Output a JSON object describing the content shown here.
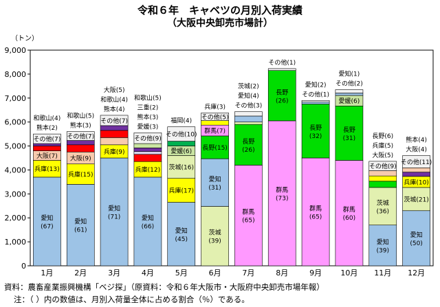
{
  "title": "令和６年　キャベツの月別入荷実績",
  "subtitle": "（大阪中央卸売市場計）",
  "source_note": "資料：農畜産業振興機構「ベジ探」（原資料：令和６年大阪市・大阪府中央卸売市場年報）",
  "share_note": "注：（ ）内の数値は、月別入荷量全体に占める割合（％）である。",
  "chart_data": {
    "type": "bar",
    "stacked": true,
    "unit_label": "（トン）",
    "ylim": [
      0,
      9000
    ],
    "yticks": [
      0,
      1000,
      2000,
      3000,
      4000,
      5000,
      6000,
      7000,
      8000,
      9000
    ],
    "ytick_labels": [
      "0",
      "1,000",
      "2,000",
      "3,000",
      "4,000",
      "5,000",
      "6,000",
      "7,000",
      "8,000",
      "9,000"
    ],
    "categories": [
      "1月",
      "2月",
      "3月",
      "4月",
      "5月",
      "6月",
      "7月",
      "8月",
      "9月",
      "10月",
      "11月",
      "12月"
    ],
    "colors": {
      "愛知": "#9dc3e6",
      "兵庫": "#ffff00",
      "大阪": "#f8cbad",
      "和歌山": "#ff0000",
      "熊本": "#7030a0",
      "三重": "#d9d2e9",
      "茨城": "#e2f0b0",
      "群馬": "#ff99ff",
      "長野": "#00dd00",
      "愛媛": "#c9e4a2",
      "福岡": "#00b050",
      "その他": "#f2f2f2"
    },
    "months": [
      {
        "segments": [
          {
            "name": "愛知",
            "value": 3700,
            "share": "(67)"
          },
          {
            "name": "兵庫",
            "value": 700,
            "share": "(13)"
          },
          {
            "name": "大阪",
            "value": 400,
            "share": "(7)"
          },
          {
            "name": "和歌山",
            "value": 200,
            "share": "(4)"
          },
          {
            "name": "熊本",
            "value": 100,
            "share": "(2)"
          },
          {
            "name": "その他",
            "value": 400,
            "share": "(7)"
          }
        ]
      },
      {
        "segments": [
          {
            "name": "愛知",
            "value": 3400,
            "share": "(61)"
          },
          {
            "name": "兵庫",
            "value": 850,
            "share": "(15)"
          },
          {
            "name": "大阪",
            "value": 500,
            "share": "(9)"
          },
          {
            "name": "和歌山",
            "value": 300,
            "share": "(5)"
          },
          {
            "name": "熊本",
            "value": 180,
            "share": "(3)"
          },
          {
            "name": "その他",
            "value": 370,
            "share": "(7)"
          }
        ]
      },
      {
        "segments": [
          {
            "name": "愛知",
            "value": 4500,
            "share": "(71)"
          },
          {
            "name": "兵庫",
            "value": 550,
            "share": "(9)"
          },
          {
            "name": "大阪",
            "value": 300,
            "share": "(5)"
          },
          {
            "name": "和歌山",
            "value": 300,
            "share": "(4)"
          },
          {
            "name": "熊本",
            "value": 200,
            "share": "(4)"
          },
          {
            "name": "その他",
            "value": 430,
            "share": "(7)"
          }
        ]
      },
      {
        "segments": [
          {
            "name": "愛知",
            "value": 3700,
            "share": "(66)"
          },
          {
            "name": "兵庫",
            "value": 650,
            "share": "(12)"
          },
          {
            "name": "和歌山",
            "value": 300,
            "share": "(5)"
          },
          {
            "name": "三重",
            "value": 120,
            "share": "(2)"
          },
          {
            "name": "熊本",
            "value": 150,
            "share": "(3)"
          },
          {
            "name": "愛媛",
            "value": 180,
            "share": "(3)"
          },
          {
            "name": "その他",
            "value": 450,
            "share": "(9)"
          }
        ]
      },
      {
        "segments": [
          {
            "name": "愛知",
            "value": 2650,
            "share": "(45)"
          },
          {
            "name": "兵庫",
            "value": 1000,
            "share": "(17)"
          },
          {
            "name": "茨城",
            "value": 950,
            "share": "(16)"
          },
          {
            "name": "愛媛",
            "value": 400,
            "share": "(6)"
          },
          {
            "name": "福岡",
            "value": 200,
            "share": "(4)"
          },
          {
            "name": "その他",
            "value": 600,
            "share": "(10)"
          }
        ]
      },
      {
        "segments": [
          {
            "name": "茨城",
            "value": 2480,
            "share": "(39)"
          },
          {
            "name": "愛知",
            "value": 1990,
            "share": "(31)"
          },
          {
            "name": "長野",
            "value": 950,
            "share": "(15)"
          },
          {
            "name": "群馬",
            "value": 450,
            "share": "(7)"
          },
          {
            "name": "兵庫",
            "value": 190,
            "share": "(3)"
          },
          {
            "name": "その他",
            "value": 320,
            "share": "(5)"
          }
        ]
      },
      {
        "segments": [
          {
            "name": "群馬",
            "value": 4200,
            "share": "(65)"
          },
          {
            "name": "長野",
            "value": 1700,
            "share": "(26)"
          },
          {
            "name": "茨城",
            "value": 100,
            "share": "(2)"
          },
          {
            "name": "愛知",
            "value": 250,
            "share": "(4)"
          },
          {
            "name": "その他",
            "value": 180,
            "share": "(3)"
          }
        ]
      },
      {
        "segments": [
          {
            "name": "群馬",
            "value": 6050,
            "share": "(73)"
          },
          {
            "name": "長野",
            "value": 2100,
            "share": "(26)"
          },
          {
            "name": "その他",
            "value": 80,
            "share": "(1)"
          }
        ]
      },
      {
        "segments": [
          {
            "name": "群馬",
            "value": 4500,
            "share": "(65)"
          },
          {
            "name": "長野",
            "value": 2250,
            "share": "(32)"
          },
          {
            "name": "愛知",
            "value": 80,
            "share": "(2)"
          },
          {
            "name": "その他",
            "value": 70,
            "share": "(1)"
          }
        ]
      },
      {
        "segments": [
          {
            "name": "群馬",
            "value": 4400,
            "share": "(60)"
          },
          {
            "name": "長野",
            "value": 2270,
            "share": "(31)"
          },
          {
            "name": "愛媛",
            "value": 440,
            "share": "(6)"
          },
          {
            "name": "愛知",
            "value": 100,
            "share": "(1)"
          },
          {
            "name": "その他",
            "value": 140,
            "share": "(2)"
          }
        ]
      },
      {
        "segments": [
          {
            "name": "愛知",
            "value": 1700,
            "share": "(39)"
          },
          {
            "name": "茨城",
            "value": 1570,
            "share": "(36)"
          },
          {
            "name": "長野",
            "value": 260,
            "share": "(6)"
          },
          {
            "name": "兵庫",
            "value": 220,
            "share": "(5)"
          },
          {
            "name": "大阪",
            "value": 220,
            "share": "(5)"
          },
          {
            "name": "その他",
            "value": 390,
            "share": "(9)"
          }
        ]
      },
      {
        "segments": [
          {
            "name": "愛知",
            "value": 2300,
            "share": "(50)"
          },
          {
            "name": "茨城",
            "value": 970,
            "share": "(21)"
          },
          {
            "name": "兵庫",
            "value": 460,
            "share": "(10)"
          },
          {
            "name": "熊本",
            "value": 180,
            "share": "(4)"
          },
          {
            "name": "大阪",
            "value": 180,
            "share": "(4)"
          },
          {
            "name": "その他",
            "value": 510,
            "share": "(11)"
          }
        ]
      }
    ]
  }
}
